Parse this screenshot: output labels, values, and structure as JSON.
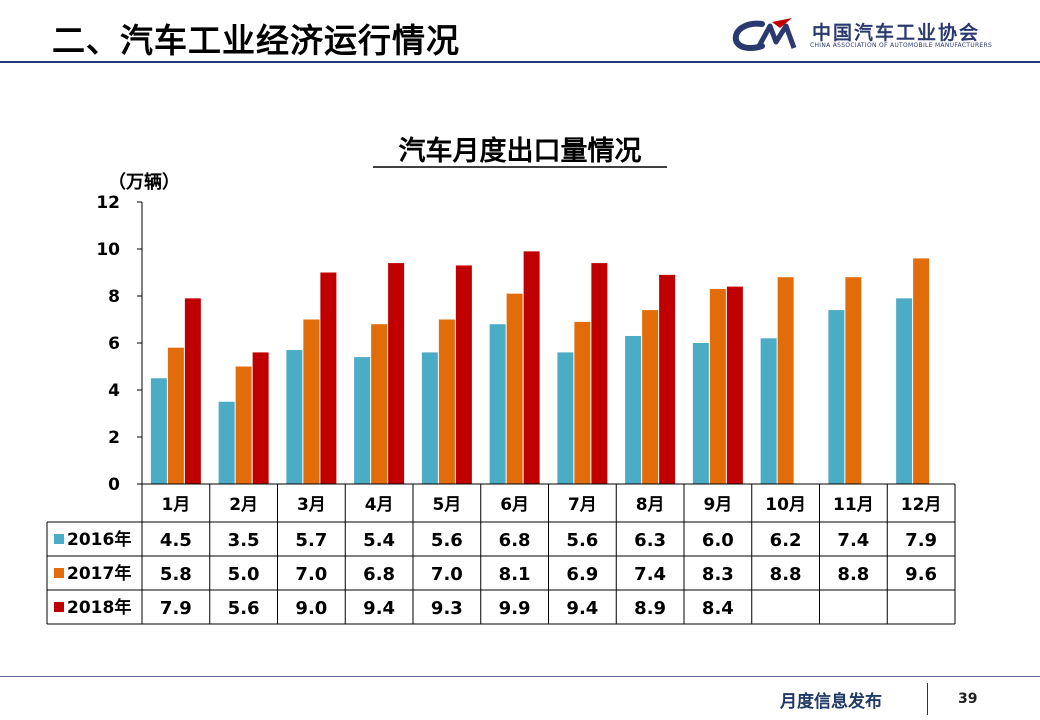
{
  "header": {
    "title": "二、汽车工业经济运行情况",
    "logo_text_cn": "中国汽车工业协会",
    "logo_text_en": "CHINA ASSOCIATION OF AUTOMOBILE MANUFACTURERS"
  },
  "footer": {
    "label": "月度信息发布",
    "page_number": "39"
  },
  "chart_data": {
    "type": "bar",
    "title": "汽车月度出口量情况",
    "ylabel": "（万辆）",
    "ylim": [
      0,
      12
    ],
    "yticks": [
      0,
      2,
      4,
      6,
      8,
      10,
      12
    ],
    "categories": [
      "1月",
      "2月",
      "3月",
      "4月",
      "5月",
      "6月",
      "7月",
      "8月",
      "9月",
      "10月",
      "11月",
      "12月"
    ],
    "series": [
      {
        "name": "2016年",
        "color": "#4bacc6",
        "values": [
          4.5,
          3.5,
          5.7,
          5.4,
          5.6,
          6.8,
          5.6,
          6.3,
          6.0,
          6.2,
          7.4,
          7.9
        ]
      },
      {
        "name": "2017年",
        "color": "#e36c0a",
        "values": [
          5.8,
          5.0,
          7.0,
          6.8,
          7.0,
          8.1,
          6.9,
          7.4,
          8.3,
          8.8,
          8.8,
          9.6
        ]
      },
      {
        "name": "2018年",
        "color": "#c00000",
        "values": [
          7.9,
          5.6,
          9.0,
          9.4,
          9.3,
          9.9,
          9.4,
          8.9,
          8.4,
          null,
          null,
          null
        ]
      }
    ],
    "grid": false,
    "legend": "data-table-left"
  }
}
